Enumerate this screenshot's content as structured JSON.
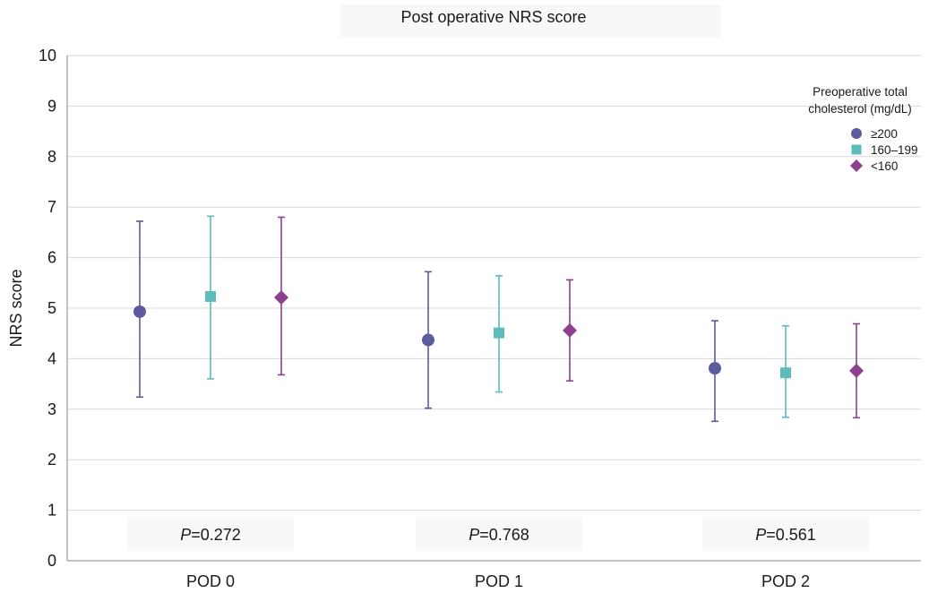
{
  "chart_data": {
    "type": "scatter",
    "title": "Post operative NRS score",
    "ylabel": "NRS score",
    "xlabel": "",
    "ylim": [
      0,
      10
    ],
    "yticks": [
      0,
      1,
      2,
      3,
      4,
      5,
      6,
      7,
      8,
      9,
      10
    ],
    "grid": true,
    "categories": [
      "POD 0",
      "POD 1",
      "POD 2"
    ],
    "legend": {
      "title_lines": [
        "Preoperative total",
        "cholesterol (mg/dL)"
      ],
      "placement": "top-right"
    },
    "series": [
      {
        "name": "≥200",
        "marker": "circle",
        "color": "#5b5b9e",
        "values": [
          4.93,
          4.37,
          3.81
        ],
        "upper": [
          6.72,
          5.72,
          4.75
        ],
        "lower": [
          3.24,
          3.02,
          2.76
        ]
      },
      {
        "name": "160–199",
        "marker": "square",
        "color": "#5bbcbb",
        "values": [
          5.23,
          4.51,
          3.72
        ],
        "upper": [
          6.82,
          5.64,
          4.65
        ],
        "lower": [
          3.6,
          3.34,
          2.84
        ]
      },
      {
        "name": "<160",
        "marker": "diamond",
        "color": "#8e3f8f",
        "values": [
          5.21,
          4.56,
          3.76
        ],
        "upper": [
          6.8,
          5.56,
          4.69
        ],
        "lower": [
          3.68,
          3.56,
          2.83
        ]
      }
    ],
    "annotations": [
      {
        "category": "POD 0",
        "p_prefix": "P",
        "p_value": "=0.272"
      },
      {
        "category": "POD 1",
        "p_prefix": "P",
        "p_value": "=0.768"
      },
      {
        "category": "POD 2",
        "p_prefix": "P",
        "p_value": "=0.561"
      }
    ]
  }
}
